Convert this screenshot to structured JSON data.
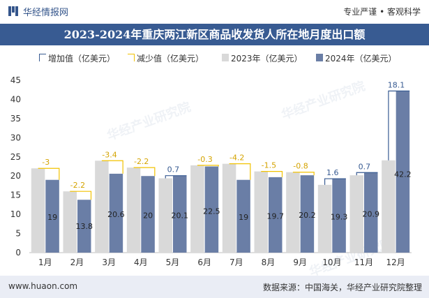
{
  "header": {
    "brand": "华经情报网",
    "tagline": "专业严谨 • 客观科学"
  },
  "title": "2023-2024年重庆两江新区商品收发货人所在地月度出口额",
  "footer": {
    "left": "www.huaon.com",
    "right": "数据来源：中国海关，华经产业研究院整理"
  },
  "watermark": "华经产业研究院",
  "colors": {
    "titlebar": "#385b92",
    "bar2023": "#d9d9d9",
    "bar2024": "#6a7ea6",
    "increase": "#385b92",
    "decrease": "#f2c200"
  },
  "chart_data": {
    "type": "bar",
    "categories": [
      "1月",
      "2月",
      "3月",
      "4月",
      "5月",
      "6月",
      "7月",
      "8月",
      "9月",
      "10月",
      "11月",
      "12月"
    ],
    "legend": [
      "增加值（亿美元）",
      "减少值（亿美元）",
      "2023年（亿美元）",
      "2024年（亿美元）"
    ],
    "series": [
      {
        "name": "2023年（亿美元）",
        "values": [
          22,
          16,
          24,
          22.2,
          19.4,
          22.8,
          23.2,
          21.2,
          21,
          17.7,
          20.2,
          24.1
        ]
      },
      {
        "name": "2024年（亿美元）",
        "values": [
          19,
          13.8,
          20.6,
          20,
          20.1,
          22.5,
          19,
          19.7,
          20.2,
          19.3,
          20.9,
          42.2
        ]
      }
    ],
    "change": [
      -3,
      -2.2,
      -3.4,
      -2.2,
      0.7,
      -0.3,
      -4.2,
      -1.5,
      -0.8,
      1.6,
      0.7,
      18.1
    ],
    "change_labels": [
      "-3",
      "-2.2",
      "-3.4",
      "-2.2",
      "0.7",
      "-0.3",
      "-4.2",
      "-1.5",
      "-0.8",
      "1.6",
      "0.7",
      "18.1"
    ],
    "value_labels_2024": [
      "19",
      "13.8",
      "20.6",
      "20",
      "20.1",
      "22.5",
      "19",
      "19.7",
      "20.2",
      "19.3",
      "20.9",
      "42.2"
    ],
    "ylim": [
      0,
      45
    ],
    "yticks": [
      0,
      5,
      10,
      15,
      20,
      25,
      30,
      35,
      40,
      45
    ],
    "grid": false,
    "legend_position": "top"
  }
}
